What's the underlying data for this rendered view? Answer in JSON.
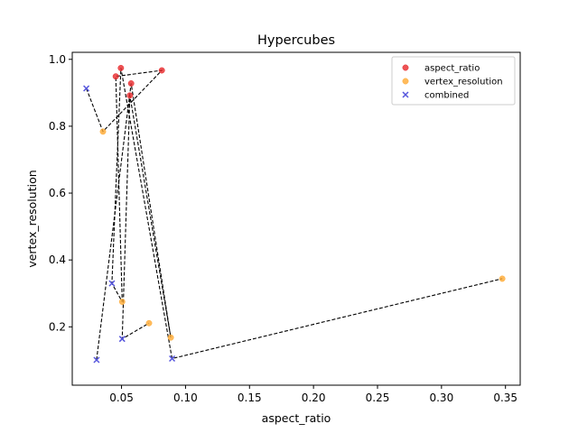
{
  "chart_data": {
    "type": "scatter",
    "title": "Hypercubes",
    "xlabel": "aspect_ratio",
    "ylabel": "vertex_resolution",
    "xlim": [
      0.0115,
      0.3615
    ],
    "ylim": [
      0.0255,
      1.021
    ],
    "xticks": [
      0.05,
      0.1,
      0.15,
      0.2,
      0.25,
      0.3,
      0.35
    ],
    "xtick_labels": [
      "0.05",
      "0.10",
      "0.15",
      "0.20",
      "0.25",
      "0.30",
      "0.35"
    ],
    "yticks": [
      0.2,
      0.4,
      0.6,
      0.8,
      1.0
    ],
    "ytick_labels": [
      "0.2",
      "0.4",
      "0.6",
      "0.8",
      "1.0"
    ],
    "grid": false,
    "legend_position": "top-right",
    "series": [
      {
        "name": "aspect_ratio",
        "marker": "circle",
        "color": "#e8282b",
        "x": [
          0.0455,
          0.0495,
          0.0565,
          0.0575,
          0.0815
        ],
        "y": [
          0.949,
          0.974,
          0.892,
          0.928,
          0.967
        ]
      },
      {
        "name": "vertex_resolution",
        "marker": "circle",
        "color": "#ffaa33",
        "x": [
          0.0355,
          0.0505,
          0.0715,
          0.0885,
          0.3475
        ],
        "y": [
          0.784,
          0.275,
          0.211,
          0.168,
          0.344
        ]
      },
      {
        "name": "combined",
        "marker": "x",
        "color": "#5555dd",
        "x": [
          0.0225,
          0.0305,
          0.0425,
          0.0505,
          0.0895
        ],
        "y": [
          0.913,
          0.101,
          0.33,
          0.164,
          0.105
        ]
      }
    ],
    "connecting_path": {
      "style": "dashed",
      "color": "#000000",
      "x": [
        0.0225,
        0.0355,
        0.0815,
        0.0455,
        0.0505,
        0.0425,
        0.0495,
        0.0895,
        0.3475
      ],
      "y": [
        0.913,
        0.784,
        0.967,
        0.949,
        0.275,
        0.33,
        0.974,
        0.105,
        0.344
      ],
      "x2": [
        0.0305,
        0.0575,
        0.0885,
        0.0565,
        0.0505,
        0.0715
      ],
      "y2": [
        0.101,
        0.928,
        0.168,
        0.892,
        0.164,
        0.211
      ]
    }
  }
}
